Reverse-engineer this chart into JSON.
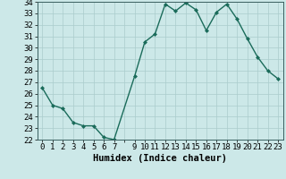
{
  "xlabel": "Humidex (Indice chaleur)",
  "hours": [
    0,
    1,
    2,
    3,
    4,
    5,
    6,
    7,
    9,
    10,
    11,
    12,
    13,
    14,
    15,
    16,
    17,
    18,
    19,
    20,
    21,
    22,
    23
  ],
  "values": [
    26.5,
    25.0,
    24.7,
    23.5,
    23.2,
    23.2,
    22.2,
    22.0,
    27.5,
    30.5,
    31.2,
    33.8,
    33.2,
    33.9,
    33.3,
    31.5,
    33.1,
    33.8,
    32.5,
    30.8,
    29.2,
    28.0,
    27.3
  ],
  "line_color": "#1a6b5a",
  "bg_color": "#cce8e8",
  "grid_color": "#aacccc",
  "ylim": [
    22,
    34
  ],
  "yticks": [
    22,
    23,
    24,
    25,
    26,
    27,
    28,
    29,
    30,
    31,
    32,
    33,
    34
  ],
  "xtick_labels": [
    "0",
    "1",
    "2",
    "3",
    "4",
    "5",
    "6",
    "7",
    "",
    "9",
    "10",
    "11",
    "12",
    "13",
    "14",
    "15",
    "16",
    "17",
    "18",
    "19",
    "20",
    "21",
    "22",
    "23"
  ],
  "xlabel_fontsize": 7.5,
  "tick_fontsize": 6.5,
  "marker": "D",
  "marker_size": 2.0,
  "linewidth": 1.0
}
